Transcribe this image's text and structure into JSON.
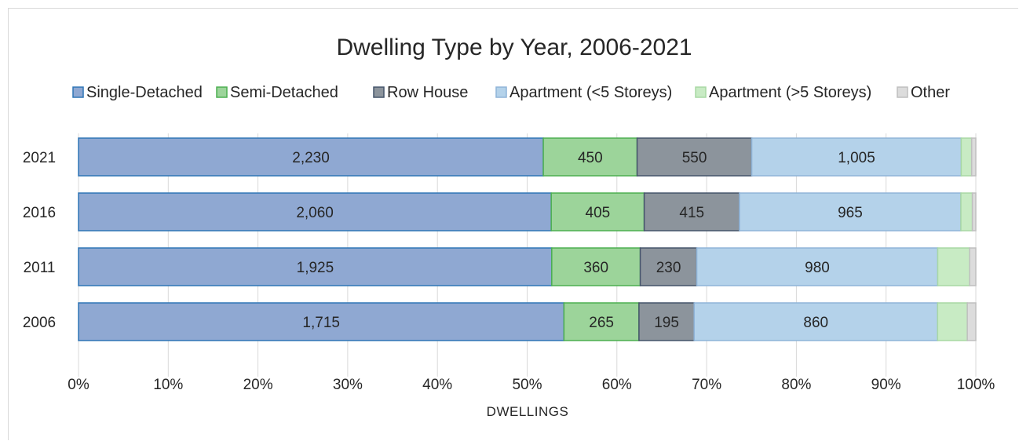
{
  "chart_data": {
    "type": "bar",
    "orientation": "horizontal",
    "stacking": "percent",
    "title": "Dwelling Type by Year, 2006-2021",
    "xlabel": "DWELLINGS",
    "ylabel": "",
    "xlim": [
      0,
      100
    ],
    "x_ticks": [
      "0%",
      "10%",
      "20%",
      "30%",
      "40%",
      "50%",
      "60%",
      "70%",
      "80%",
      "90%",
      "100%"
    ],
    "grid": true,
    "legend_position": "top",
    "categories": [
      "2021",
      "2016",
      "2011",
      "2006"
    ],
    "series": [
      {
        "name": "Single-Detached",
        "values": [
          2230,
          2060,
          1925,
          1715
        ],
        "color": "#8fa8d2",
        "border": "#2e75b6",
        "labels": [
          "2,230",
          "2,060",
          "1,925",
          "1,715"
        ]
      },
      {
        "name": "Semi-Detached",
        "values": [
          450,
          405,
          360,
          265
        ],
        "color": "#9cd49a",
        "border": "#4caf50",
        "labels": [
          "450",
          "405",
          "360",
          "265"
        ]
      },
      {
        "name": "Row House",
        "values": [
          550,
          415,
          230,
          195
        ],
        "color": "#8c949c",
        "border": "#44546a",
        "labels": [
          "550",
          "415",
          "230",
          "195"
        ]
      },
      {
        "name": "Apartment (<5 Storeys)",
        "values": [
          1005,
          965,
          980,
          860
        ],
        "color": "#b4d2ea",
        "border": "#8fb4d8",
        "labels": [
          "1,005",
          "965",
          "980",
          "860"
        ]
      },
      {
        "name": "Apartment (>5 Storeys)",
        "values": [
          50,
          50,
          130,
          105
        ],
        "color": "#c8ebc4",
        "border": "#a8d8a4",
        "labels": [
          "",
          "",
          "",
          ""
        ]
      },
      {
        "name": "Other",
        "values": [
          20,
          15,
          25,
          30
        ],
        "color": "#dcdcdc",
        "border": "#bfbfbf",
        "labels": [
          "",
          "",
          "",
          ""
        ]
      }
    ]
  }
}
